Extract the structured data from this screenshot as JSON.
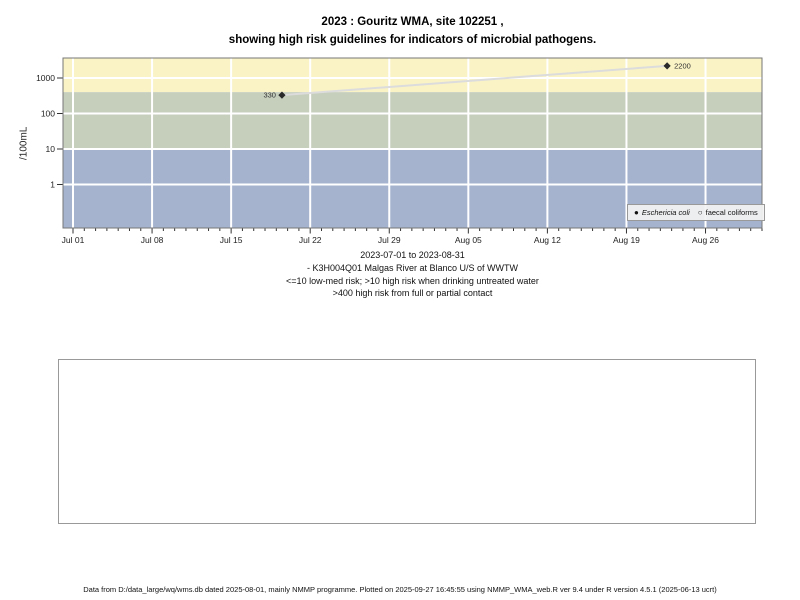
{
  "title": {
    "line1": "2023 : Gouritz WMA, site 102251 ,",
    "line2": "showing high risk guidelines for indicators of microbial pathogens."
  },
  "chart_data": {
    "type": "scatter",
    "title": "2023 : Gouritz WMA, site 102251 , showing high risk guidelines for indicators of microbial pathogens.",
    "xlabel": "",
    "ylabel": "/100mL",
    "y_scale": "log10",
    "y_ticks": [
      1000,
      100,
      10,
      1
    ],
    "y_top_value_approx": 3660,
    "y_bottom_value_approx": 0.06,
    "x_range": {
      "start": "2023-07-01",
      "end": "2023-08-31",
      "total_days": 61
    },
    "x_major_ticks": [
      {
        "day": 0,
        "label": "Jul 01"
      },
      {
        "day": 7,
        "label": "Jul 08"
      },
      {
        "day": 14,
        "label": "Jul 15"
      },
      {
        "day": 21,
        "label": "Jul 22"
      },
      {
        "day": 28,
        "label": "Jul 29"
      },
      {
        "day": 35,
        "label": "Aug 05"
      },
      {
        "day": 42,
        "label": "Aug 12"
      },
      {
        "day": 49,
        "label": "Aug 19"
      },
      {
        "day": 56,
        "label": "Aug 26"
      }
    ],
    "x_minor_tick_every_days": 1,
    "bands": [
      {
        "name": "high-risk-full-or-partial-contact",
        "min": 400,
        "max": "top",
        "color": "#faf3c6"
      },
      {
        "name": "high-risk-drinking-untreated",
        "min": 10,
        "max": 400,
        "color": "#c6cebc"
      },
      {
        "name": "low-med-risk",
        "min": "bottom",
        "max": 10,
        "color": "#a5b3cf"
      }
    ],
    "series": [
      {
        "name": "Eschericia coli",
        "marker": "filled-diamond",
        "line_color": "#dcdcdc",
        "points": [
          {
            "day": 18.5,
            "date_approx": "2023-07-19",
            "value": 330,
            "label": "330",
            "label_side": "left"
          },
          {
            "day": 52.6,
            "date_approx": "2023-08-22",
            "value": 2200,
            "label": "2200",
            "label_side": "right"
          }
        ]
      },
      {
        "name": "faecal coliforms",
        "marker": "open-circle",
        "line_color": "#dcdcdc",
        "points": []
      }
    ],
    "colors": {
      "grid": "#ffffff",
      "plot_border": "#777777",
      "tick": "#333333",
      "tick_label": "#222222",
      "marker": "#2a2a2a",
      "point_label": "#333333"
    },
    "legend_position": "bottom-right",
    "grid": true
  },
  "legend": {
    "items": [
      {
        "marker": "●",
        "label": "Eschericia coli",
        "italic": true
      },
      {
        "marker": "○",
        "label": "faecal coliforms",
        "italic": false
      }
    ]
  },
  "caption": {
    "lines": [
      "2023-07-01 to 2023-08-31",
      "- K3H004Q01 Malgas River at Blanco U/S of WWTW",
      "<=10 low-med risk; >10 high risk when drinking untreated water",
      ">400 high risk from full or partial contact"
    ]
  },
  "footer": {
    "text": "Data from D:/data_large/wq/wms.db dated 2025-08-01, mainly NMMP programme. Plotted on 2025-09-27 16:45:55 using NMMP_WMA_web.R ver 9.4 under R version 4.5.1 (2025-06-13 ucrt)"
  }
}
